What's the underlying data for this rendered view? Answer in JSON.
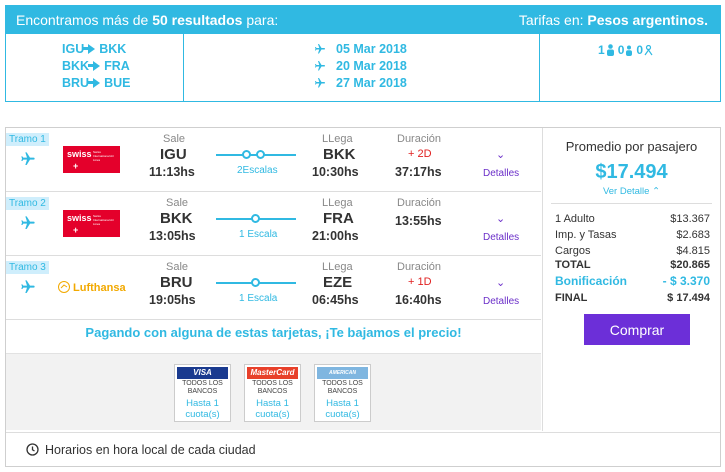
{
  "header": {
    "found_prefix": "Encontramos más de",
    "found_count": "50 resultados",
    "found_suffix": "para:",
    "fares_label": "Tarifas en:",
    "fares_currency": "Pesos argentinos."
  },
  "summary": {
    "routes": [
      {
        "from": "IGU",
        "to": "BKK"
      },
      {
        "from": "BKK",
        "to": "FRA"
      },
      {
        "from": "BRU",
        "to": "BUE"
      }
    ],
    "dates": [
      "05 Mar 2018",
      "20 Mar 2018",
      "27 Mar 2018"
    ],
    "passengers": {
      "adults": "1",
      "children": "0",
      "infants": "0"
    }
  },
  "segments": [
    {
      "tramo": "Tramo 1",
      "airline": "swiss",
      "airline_sub": "Swiss International Air Lines",
      "sale_label": "Sale",
      "from": "IGU",
      "dep_time": "11:13hs",
      "stops": "2Escalas",
      "llega_label": "LLega",
      "to": "BKK",
      "arr_time": "10:30hs",
      "dur_label": "Duración",
      "plus_days": "+ 2D",
      "duration": "37:17hs",
      "details": "Detalles"
    },
    {
      "tramo": "Tramo 2",
      "airline": "swiss",
      "airline_sub": "Swiss International Air Lines",
      "sale_label": "Sale",
      "from": "BKK",
      "dep_time": "13:05hs",
      "stops": "1 Escala",
      "llega_label": "LLega",
      "to": "FRA",
      "arr_time": "21:00hs",
      "dur_label": "Duración",
      "plus_days": "",
      "duration": "13:55hs",
      "details": "Detalles"
    },
    {
      "tramo": "Tramo 3",
      "airline": "Lufthansa",
      "airline_sub": "",
      "sale_label": "Sale",
      "from": "BRU",
      "dep_time": "19:05hs",
      "stops": "1 Escala",
      "llega_label": "LLega",
      "to": "EZE",
      "arr_time": "06:45hs",
      "dur_label": "Duración",
      "plus_days": "+ 1D",
      "duration": "16:40hs",
      "details": "Detalles"
    }
  ],
  "promo": {
    "title": "Pagando con alguna de estas tarjetas, ¡Te bajamos el precio!",
    "cards": [
      {
        "brand": "VISA",
        "banks": "TODOS LOS BANCOS",
        "cuotas": "Hasta 1 cuota(s)",
        "color": "#1a3a8f"
      },
      {
        "brand": "MasterCard",
        "banks": "TODOS LOS BANCOS",
        "cuotas": "Hasta 1 cuota(s)",
        "color": "#e8402a"
      },
      {
        "brand": "AMERICAN EXPRESS",
        "banks": "TODOS LOS BANCOS",
        "cuotas": "Hasta 1 cuota(s)",
        "color": "#7fb6e0"
      }
    ]
  },
  "footer": {
    "note": "Horarios en hora local de cada ciudad"
  },
  "price": {
    "title": "Promedio por pasajero",
    "amount": "$17.494",
    "ver_detalle": "Ver Detalle",
    "rows": [
      {
        "label": "1 Adulto",
        "value": "$13.367"
      },
      {
        "label": "Imp. y Tasas",
        "value": "$2.683"
      },
      {
        "label": "Cargos",
        "value": "$4.815"
      },
      {
        "label": "TOTAL",
        "value": "$20.865"
      },
      {
        "label": "Bonificación",
        "value": "- $ 3.370"
      },
      {
        "label": "FINAL",
        "value": "$ 17.494"
      }
    ],
    "buy_label": "Comprar"
  },
  "colors": {
    "accent": "#30b9e2",
    "button": "#6c2fd8",
    "details": "#6b2fc9",
    "plus_days": "#e02020"
  }
}
